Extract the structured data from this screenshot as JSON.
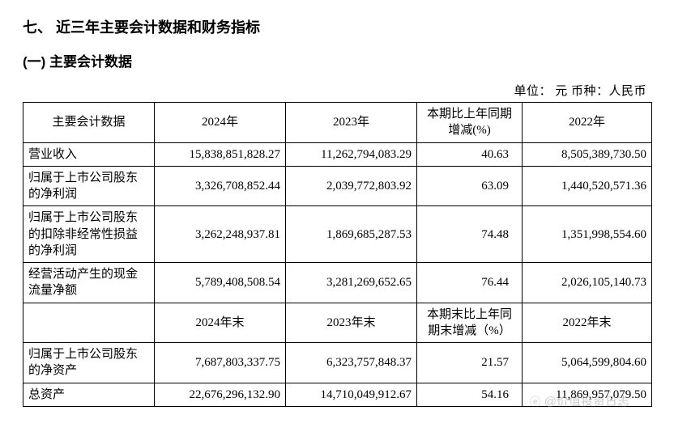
{
  "heading_main": "七、 近三年主要会计数据和财务指标",
  "heading_sub": "(一) 主要会计数据",
  "unit_line": "单位：  元    币种：人民币",
  "table": {
    "header1": {
      "label": "主要会计数据",
      "y2024": "2024年",
      "y2023": "2023年",
      "pct": "本期比上年同期增减(%)",
      "y2022": "2022年"
    },
    "rows_top": [
      {
        "label": "营业收入",
        "y2024": "15,838,851,828.27",
        "y2023": "11,262,794,083.29",
        "pct": "40.63",
        "y2022": "8,505,389,730.50"
      },
      {
        "label": "归属于上市公司股东的净利润",
        "y2024": "3,326,708,852.44",
        "y2023": "2,039,772,803.92",
        "pct": "63.09",
        "y2022": "1,440,520,571.36"
      },
      {
        "label": "归属于上市公司股东的扣除非经常性损益的净利润",
        "y2024": "3,262,248,937.81",
        "y2023": "1,869,685,287.53",
        "pct": "74.48",
        "y2022": "1,351,998,554.60"
      },
      {
        "label": "经营活动产生的现金流量净额",
        "y2024": "5,789,408,508.54",
        "y2023": "3,281,269,652.65",
        "pct": "76.44",
        "y2022": "2,026,105,140.73"
      }
    ],
    "header2": {
      "label": "",
      "y2024": "2024年末",
      "y2023": "2023年末",
      "pct": "本期末比上年同期末增减（%）",
      "y2022": "2022年末"
    },
    "rows_bottom": [
      {
        "label": "归属于上市公司股东的净资产",
        "y2024": "7,687,803,337.75",
        "y2023": "6,323,757,848.37",
        "pct": "21.57",
        "y2022": "5,064,599,804.60"
      },
      {
        "label": "总资产",
        "y2024": "22,676,296,132.90",
        "y2023": "14,710,049,912.67",
        "pct": "54.16",
        "y2022": "11,869,957,079.50"
      }
    ]
  },
  "watermark": "@价值投资日志",
  "colors": {
    "text": "#000000",
    "border": "#000000",
    "background": "#ffffff",
    "watermark": "rgba(140,140,145,0.45)"
  },
  "font_sizes": {
    "h1": 18,
    "h2": 17,
    "body": 15
  }
}
